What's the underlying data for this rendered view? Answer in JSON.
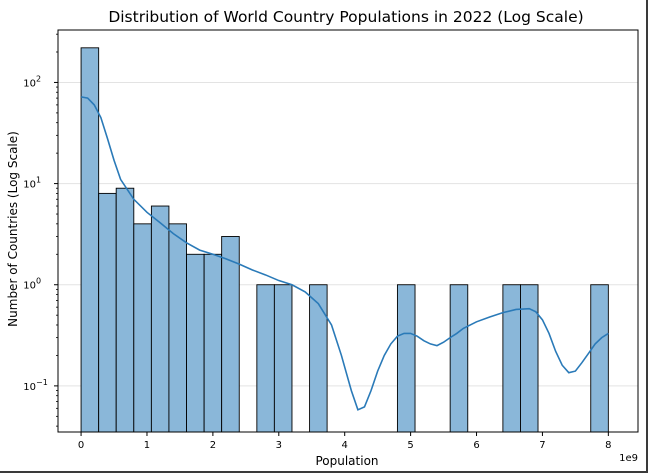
{
  "chart_data": {
    "type": "bar",
    "title": "Distribution of World Country Populations in 2022 (Log Scale)",
    "xlabel": "Population",
    "ylabel": "Number of Countries (Log Scale)",
    "x_offset_label": "1e9",
    "yscale": "log",
    "xlim": [
      -0.35,
      8.45
    ],
    "ylim": [
      0.035,
      330
    ],
    "grid": "y-major",
    "x_ticks": [
      {
        "value": 0,
        "label": "0"
      },
      {
        "value": 1,
        "label": "1"
      },
      {
        "value": 2,
        "label": "2"
      },
      {
        "value": 3,
        "label": "3"
      },
      {
        "value": 4,
        "label": "4"
      },
      {
        "value": 5,
        "label": "5"
      },
      {
        "value": 6,
        "label": "6"
      },
      {
        "value": 7,
        "label": "7"
      },
      {
        "value": 8,
        "label": "8"
      }
    ],
    "y_ticks": [
      {
        "value": 0.1,
        "base": "10",
        "exp": "−1"
      },
      {
        "value": 1,
        "base": "10",
        "exp": "0"
      },
      {
        "value": 10,
        "base": "10",
        "exp": "1"
      },
      {
        "value": 100,
        "base": "10",
        "exp": "2"
      }
    ],
    "bin_edges": [
      0,
      0.267,
      0.533,
      0.8,
      1.067,
      1.333,
      1.6,
      1.867,
      2.133,
      2.4,
      2.667,
      2.933,
      3.2,
      3.467,
      3.733,
      4.0,
      4.267,
      4.533,
      4.8,
      5.067,
      5.333,
      5.6,
      5.867,
      6.133,
      6.4,
      6.667,
      6.933,
      7.2,
      7.467,
      7.733,
      8.0
    ],
    "counts": [
      220,
      8,
      9,
      4,
      6,
      4,
      2,
      2,
      3,
      0,
      1,
      1,
      0,
      1,
      0,
      0,
      0,
      0,
      1,
      0,
      0,
      1,
      0,
      0,
      1,
      1,
      0,
      0,
      0,
      1
    ],
    "kde": {
      "x": [
        0,
        0.1,
        0.2,
        0.3,
        0.4,
        0.5,
        0.6,
        0.8,
        1.0,
        1.2,
        1.4,
        1.6,
        1.8,
        2.0,
        2.2,
        2.4,
        2.6,
        2.8,
        3.0,
        3.2,
        3.4,
        3.6,
        3.8,
        3.95,
        4.1,
        4.2,
        4.3,
        4.4,
        4.5,
        4.6,
        4.7,
        4.8,
        4.9,
        5.0,
        5.1,
        5.2,
        5.3,
        5.4,
        5.5,
        5.6,
        5.7,
        5.8,
        6.0,
        6.2,
        6.4,
        6.6,
        6.8,
        6.9,
        7.0,
        7.1,
        7.2,
        7.3,
        7.4,
        7.5,
        7.6,
        7.7,
        7.8,
        7.9,
        8.0
      ],
      "y": [
        72,
        70,
        60,
        45,
        28,
        17,
        11,
        7,
        5.2,
        4.1,
        3.2,
        2.6,
        2.2,
        2.0,
        1.8,
        1.6,
        1.4,
        1.25,
        1.1,
        1.0,
        0.85,
        0.65,
        0.4,
        0.2,
        0.09,
        0.058,
        0.062,
        0.09,
        0.14,
        0.2,
        0.26,
        0.31,
        0.33,
        0.33,
        0.31,
        0.28,
        0.26,
        0.25,
        0.27,
        0.3,
        0.33,
        0.37,
        0.43,
        0.48,
        0.53,
        0.57,
        0.58,
        0.54,
        0.45,
        0.33,
        0.22,
        0.16,
        0.135,
        0.14,
        0.17,
        0.21,
        0.26,
        0.3,
        0.33
      ]
    },
    "colors": {
      "bar_fill": "#8ab7d9",
      "bar_edge": "#000000",
      "kde_line": "#2a7ab8",
      "grid": "#e3e3e3"
    }
  }
}
